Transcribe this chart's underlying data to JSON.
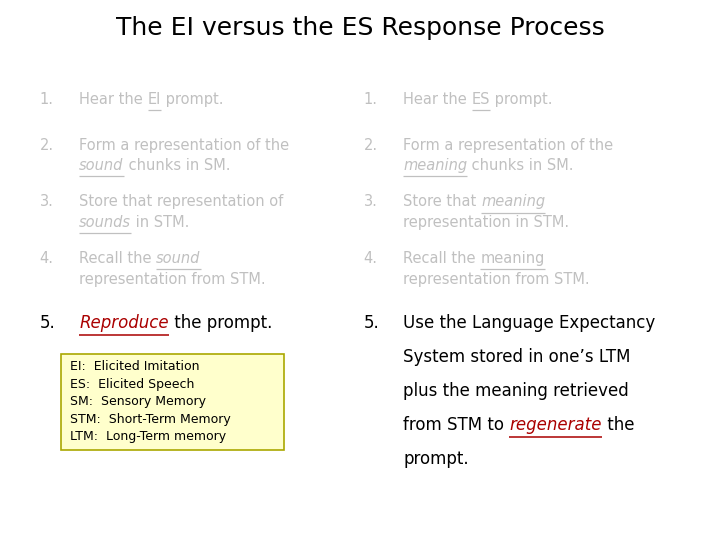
{
  "title": "The EI versus the ES Response Process",
  "bg": "#ffffff",
  "title_color": "#000000",
  "gray": "#c0c0c0",
  "red": "#aa0000",
  "black": "#000000",
  "box_bg": "#ffffcc",
  "box_border": "#aaa800",
  "box_lines": [
    "EI:  Elicited Imitation",
    "ES:  Elicited Speech",
    "SM:  Sensory Memory",
    "STM:  Short-Term Memory",
    "LTM:  Long-Term memory"
  ]
}
